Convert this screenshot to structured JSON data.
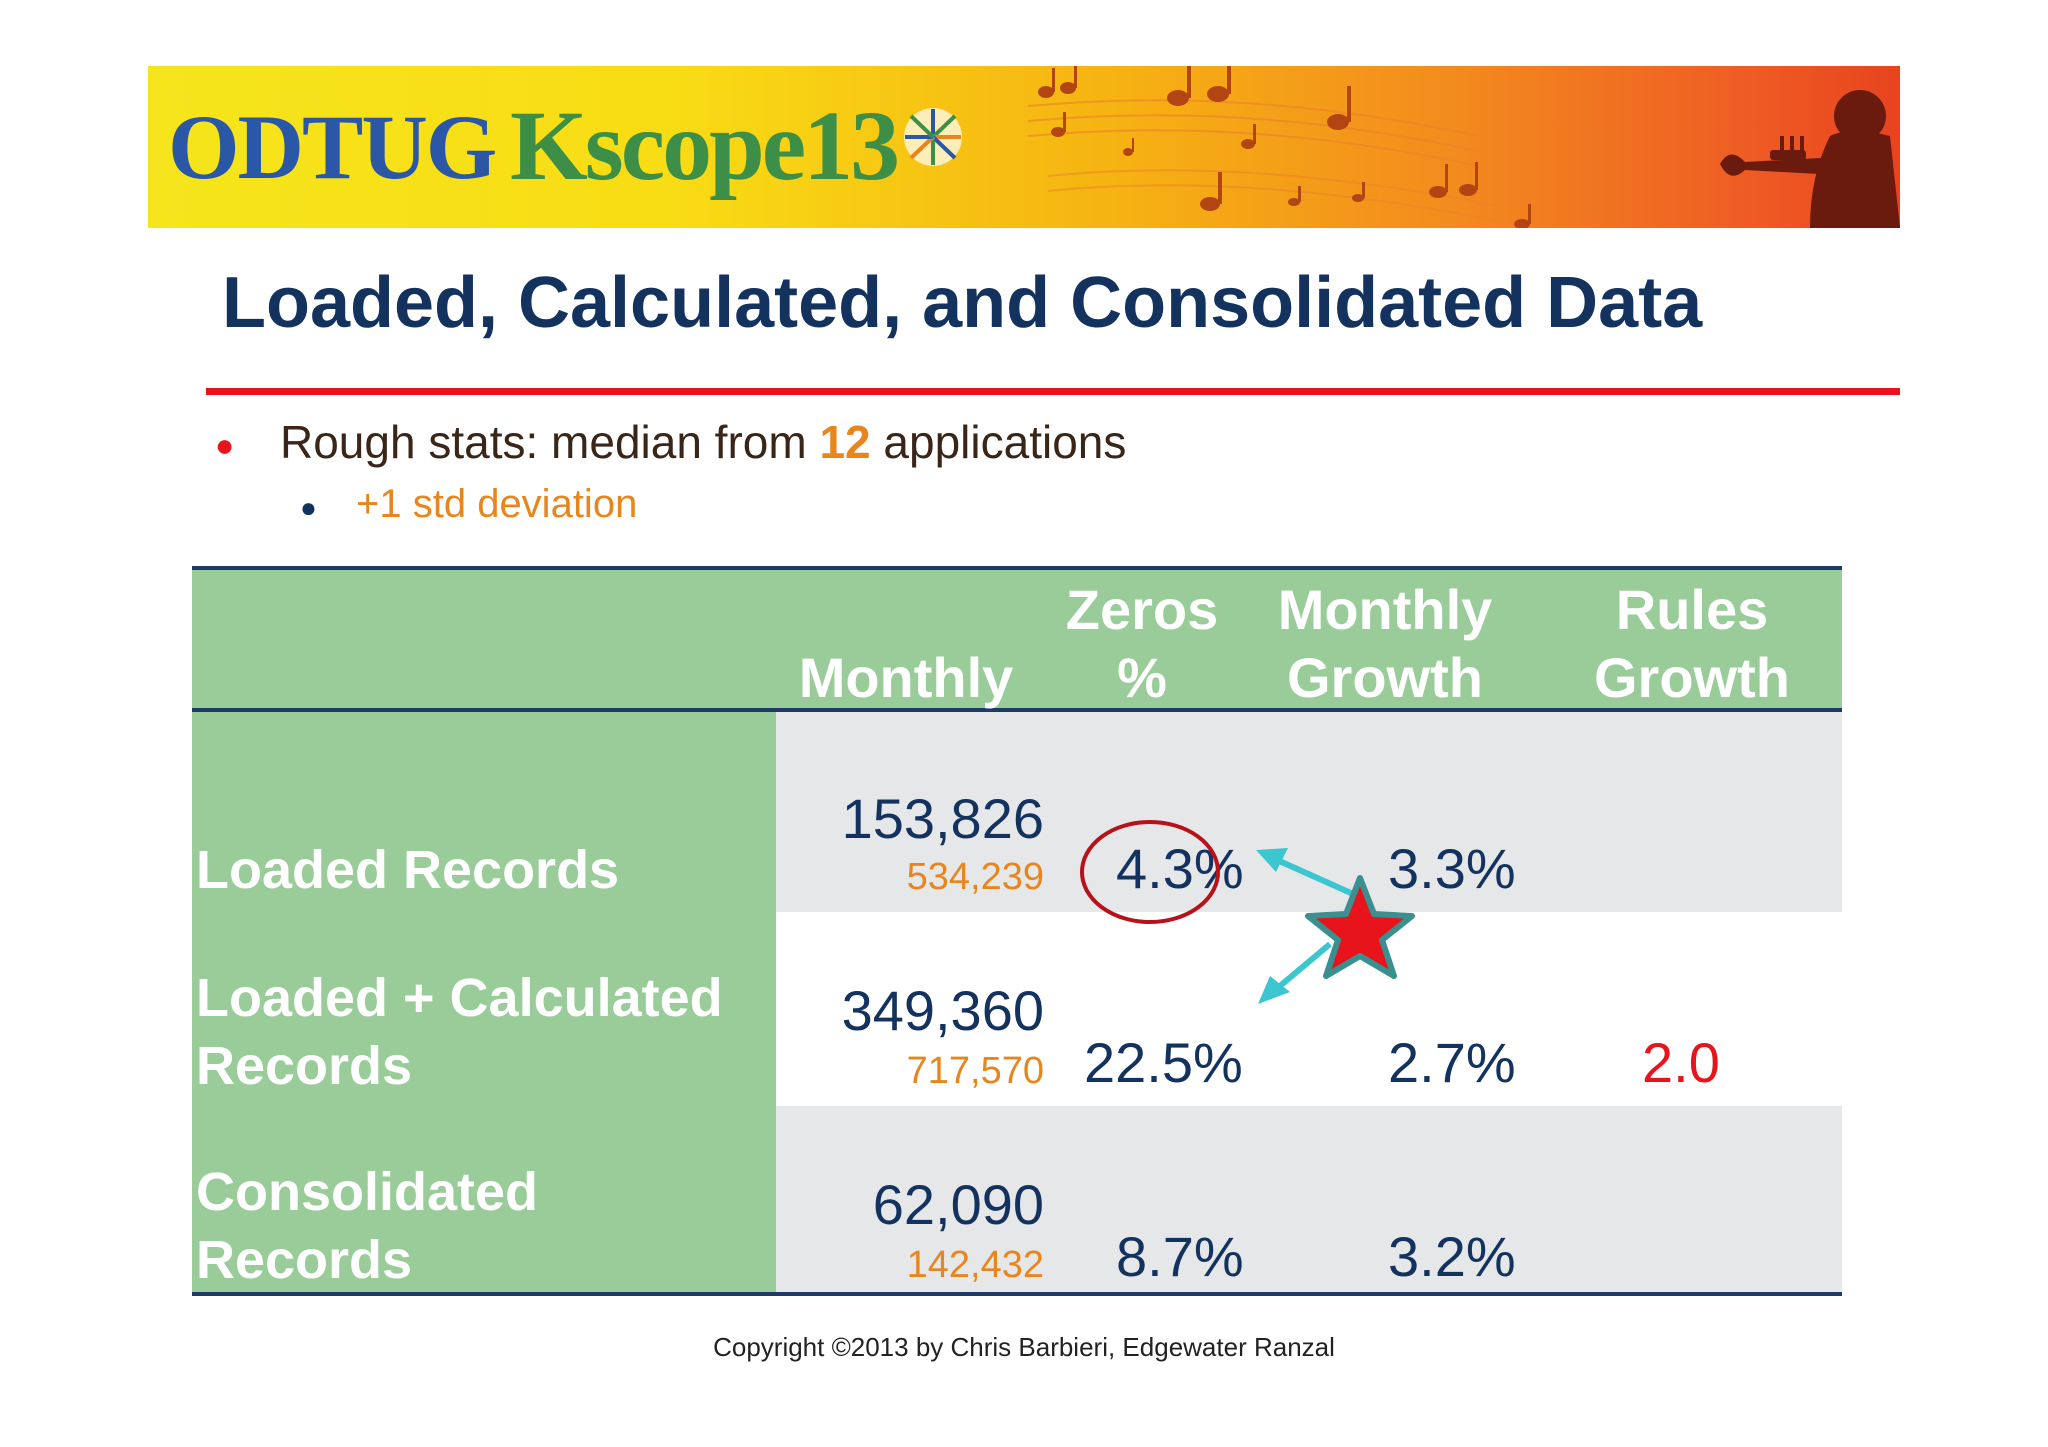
{
  "banner": {
    "logo_primary": "ODTUG",
    "logo_secondary": "Kscope13"
  },
  "title": "Loaded, Calculated, and Consolidated Data",
  "bullets": {
    "level1_prefix": "Rough stats: median from ",
    "level1_highlight": "12",
    "level1_suffix": " applications",
    "level2": "+1 std deviation"
  },
  "table": {
    "headers": {
      "monthly": "Monthly",
      "zeros_line1": "Zeros",
      "zeros_line2": "%",
      "growth_line1": "Monthly",
      "growth_line2": "Growth",
      "rules_line1": "Rules",
      "rules_line2": "Growth"
    },
    "rows": [
      {
        "label_line1": "Loaded Records",
        "label_line2": "",
        "monthly": "153,826",
        "monthly_std": "534,239",
        "zeros": "4.3%",
        "growth": "3.3%",
        "rules": ""
      },
      {
        "label_line1": "Loaded + Calculated",
        "label_line2": "Records",
        "monthly": "349,360",
        "monthly_std": "717,570",
        "zeros": "22.5%",
        "growth": "2.7%",
        "rules": "2.0"
      },
      {
        "label_line1": "Consolidated",
        "label_line2": "Records",
        "monthly": "62,090",
        "monthly_std": "142,432",
        "zeros": "8.7%",
        "growth": "3.2%",
        "rules": ""
      }
    ]
  },
  "annotations": {
    "circle_color": "#b5121b",
    "arrow_color": "#3cc6cf",
    "star_color": "#e7141b"
  },
  "footer": "Copyright ©2013 by Chris Barbieri, Edgewater Ranzal",
  "colors": {
    "navy": "#13325e",
    "red": "#e7141b",
    "orange": "#e8861e",
    "green": "#99cc99",
    "gray": "#e6e7e9"
  }
}
